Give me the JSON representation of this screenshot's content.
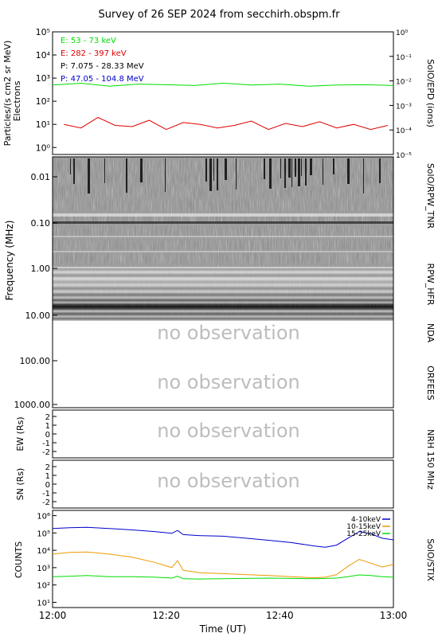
{
  "title": "Survey of 26 SEP 2024 from secchirh.obspm.fr",
  "colors": {
    "green": "#00dd00",
    "red": "#dd0000",
    "blue": "#0000cc",
    "orange": "#ee9900",
    "nobs": "#bdbdbd"
  },
  "epd": {
    "ylabel": "Particles/(s cm2 sr MeV)",
    "ylabel2": "Electrons",
    "right_label": "SolO/EPD (ions)",
    "left_ticks": [
      "10⁰",
      "10¹",
      "10²",
      "10³",
      "10⁴",
      "10⁵"
    ],
    "right_ticks": [
      "10⁻⁵",
      "10⁻⁴",
      "10⁻³",
      "10⁻²",
      "10⁻¹",
      "10⁰"
    ],
    "legend": [
      {
        "text": "E: 53 - 73 keV",
        "color": "#00dd00"
      },
      {
        "text": "E: 282 - 397 keV",
        "color": "#dd0000"
      },
      {
        "text": "P: 7.075 - 28.33 MeV",
        "color": "#000000"
      },
      {
        "text": "P: 47.05 - 104.8 MeV",
        "color": "#0000cc"
      }
    ]
  },
  "freq": {
    "ylabel": "Frequency (MHz)",
    "ticks": [
      "0.01",
      "0.10",
      "1.00",
      "10.00",
      "100.00",
      "1000.00"
    ],
    "labels": [
      "SolO/RPW_TNR",
      "RPW_HFR",
      "NDA",
      "ORFEES"
    ],
    "no_obs_1": "no observation",
    "no_obs_2": "no observation"
  },
  "nrh_ew": {
    "ylabel": "EW (Rs)",
    "ticks": [
      "2",
      "1",
      "0",
      "-1",
      "-2"
    ],
    "no_obs": "no observation"
  },
  "nrh_ns": {
    "ylabel": "SN (Rs)",
    "ticks": [
      "2",
      "1",
      "0",
      "-1",
      "-2"
    ],
    "no_obs": "no observation"
  },
  "nrh_label": "NRH 150 MHz",
  "stix": {
    "ylabel": "COUNTS",
    "right_label": "SolO/STIX",
    "ticks": [
      "10¹",
      "10²",
      "10³",
      "10⁴",
      "10⁵",
      "10⁶"
    ],
    "legend": [
      {
        "text": "4-10keV",
        "color": "#0000cc"
      },
      {
        "text": "10-15keV",
        "color": "#ee9900"
      },
      {
        "text": "15-25keV",
        "color": "#00dd00"
      }
    ]
  },
  "xaxis": {
    "label": "Time (UT)",
    "ticks": [
      "12:00",
      "12:20",
      "12:40",
      "13:00"
    ]
  },
  "chart_data": [
    {
      "type": "line",
      "title": "",
      "ylabel": "Particles/(s cm2 sr MeV)",
      "yscale": "log",
      "ylim": [
        0.5,
        100000
      ],
      "xlim": [
        0,
        60
      ],
      "series": [
        {
          "name": "E: 53 - 73 keV",
          "color": "#00dd00",
          "x": [
            0,
            5,
            10,
            15,
            20,
            25,
            30,
            35,
            40,
            45,
            50,
            55,
            60
          ],
          "y": [
            500,
            600,
            450,
            550,
            520,
            480,
            600,
            500,
            550,
            450,
            500,
            520,
            480
          ]
        },
        {
          "name": "E: 282 - 397 keV",
          "color": "#dd0000",
          "x": [
            2,
            5,
            8,
            11,
            14,
            17,
            20,
            23,
            26,
            29,
            32,
            35,
            38,
            41,
            44,
            47,
            50,
            53,
            56,
            59
          ],
          "y": [
            10,
            7,
            20,
            9,
            8,
            15,
            6,
            12,
            10,
            7,
            9,
            14,
            6,
            11,
            8,
            13,
            7,
            10,
            6,
            9
          ]
        }
      ]
    },
    {
      "type": "heatmap",
      "title": "",
      "ylabel": "Frequency (MHz)",
      "yscale": "log",
      "ylim": [
        1000,
        0.005
      ],
      "note": "SolO/RPW_TNR and RPW_HFR dynamic spectrum; NDA and ORFEES no observation"
    },
    {
      "type": "line",
      "title": "",
      "ylabel": "COUNTS",
      "yscale": "log",
      "ylim": [
        5,
        2000000
      ],
      "xlim": [
        0,
        60
      ],
      "series": [
        {
          "name": "4-10keV",
          "color": "#0000cc",
          "x": [
            0,
            3,
            6,
            10,
            14,
            18,
            21,
            22,
            23,
            26,
            30,
            34,
            38,
            42,
            46,
            48,
            50,
            52,
            54,
            56,
            58,
            60
          ],
          "y": [
            180000,
            200000,
            210000,
            180000,
            150000,
            120000,
            95000,
            140000,
            80000,
            70000,
            65000,
            50000,
            38000,
            28000,
            18000,
            15000,
            20000,
            50000,
            120000,
            90000,
            50000,
            40000
          ]
        },
        {
          "name": "10-15keV",
          "color": "#ee9900",
          "x": [
            0,
            3,
            6,
            10,
            14,
            18,
            21,
            22,
            23,
            26,
            30,
            34,
            38,
            42,
            46,
            48,
            50,
            52,
            54,
            56,
            58,
            60
          ],
          "y": [
            6000,
            7500,
            8000,
            6000,
            4000,
            2000,
            1000,
            2500,
            700,
            500,
            450,
            400,
            350,
            300,
            260,
            280,
            400,
            1200,
            3000,
            1800,
            1100,
            1500
          ]
        },
        {
          "name": "15-25keV",
          "color": "#00dd00",
          "x": [
            0,
            3,
            6,
            10,
            14,
            18,
            21,
            22,
            23,
            26,
            30,
            34,
            38,
            42,
            46,
            48,
            50,
            52,
            54,
            56,
            58,
            60
          ],
          "y": [
            300,
            320,
            350,
            300,
            300,
            280,
            250,
            320,
            230,
            220,
            230,
            240,
            250,
            240,
            230,
            240,
            250,
            300,
            380,
            350,
            300,
            280
          ]
        }
      ]
    }
  ]
}
